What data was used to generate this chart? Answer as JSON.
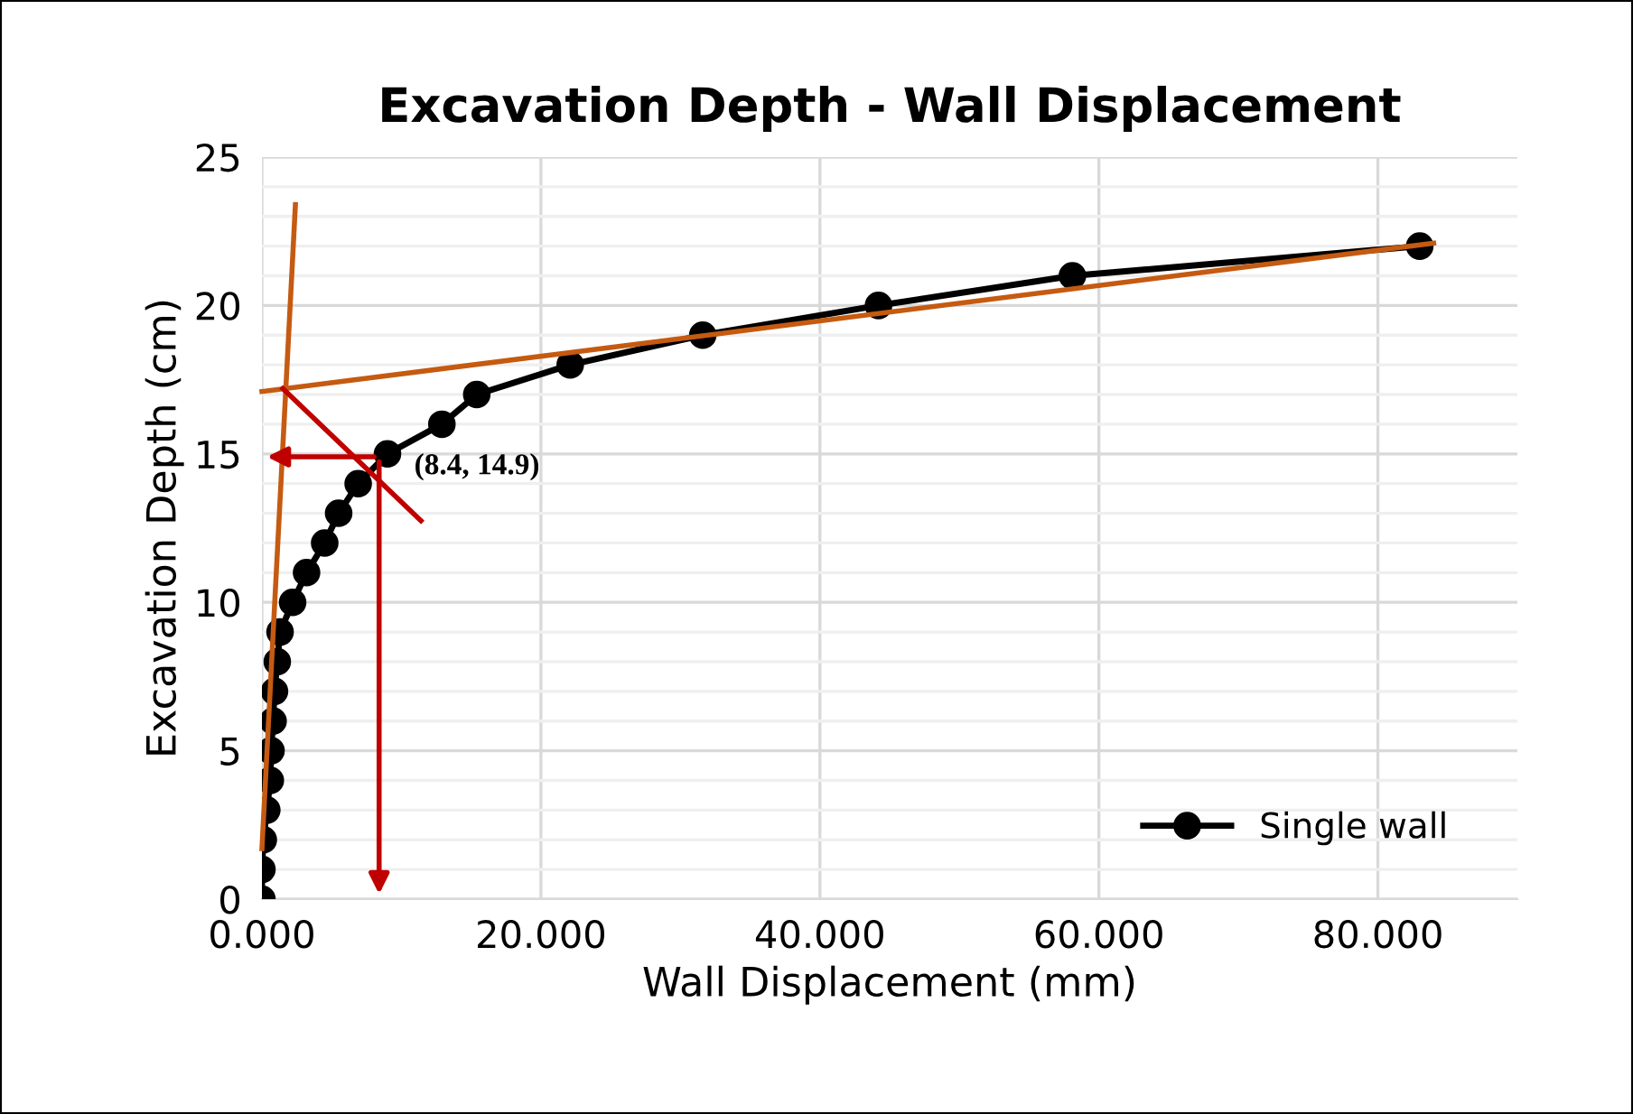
{
  "chart_data": {
    "type": "line",
    "title": "Excavation Depth - Wall Displacement",
    "xlabel": "Wall Displacement (mm)",
    "ylabel": "Excavation Depth (cm)",
    "series": [
      {
        "name": "Single wall",
        "color": "#000000",
        "marker": "circle",
        "x": [
          0,
          0,
          0.1,
          0.35,
          0.6,
          0.65,
          0.8,
          0.9,
          1.1,
          1.3,
          2.2,
          3.2,
          4.5,
          5.5,
          6.9,
          9.0,
          12.9,
          15.4,
          22.1,
          31.6,
          44.2,
          58.1,
          83.0
        ],
        "values": [
          0,
          1,
          2,
          3,
          4,
          5,
          6,
          7,
          8,
          9,
          10,
          11,
          12,
          13,
          14,
          15,
          16,
          17,
          18,
          19,
          20,
          21,
          22
        ]
      },
      {
        "type": "line",
        "color": "#c55a11",
        "x": [
          0,
          2.4
        ],
        "values": [
          1.7,
          23.4
        ]
      },
      {
        "type": "line",
        "color": "#c55a11",
        "x": [
          0,
          84.0
        ],
        "values": [
          17.1,
          22.1
        ]
      },
      {
        "type": "line",
        "color": "#c00000",
        "x": [
          1.5,
          11.4
        ],
        "values": [
          17.2,
          12.75
        ]
      }
    ],
    "annotations": [
      {
        "text": "(8.4, 14.9)",
        "x": 8.4,
        "y": 14.9
      }
    ],
    "xlim": [
      0,
      90
    ],
    "xticks": [
      {
        "value": 0,
        "label": "0.000"
      },
      {
        "value": 20,
        "label": "20.000"
      },
      {
        "value": 40,
        "label": "40.000"
      },
      {
        "value": 60,
        "label": "60.000"
      },
      {
        "value": 80,
        "label": "80.000"
      }
    ],
    "ylim": [
      0,
      25
    ],
    "yticks": [
      0,
      {
        "value": 1,
        "label": null
      },
      {
        "value": 2,
        "label": null
      },
      {
        "value": 3,
        "label": null
      },
      {
        "value": 4,
        "label": null
      },
      5,
      {
        "value": 6,
        "label": null
      },
      {
        "value": 7,
        "label": null
      },
      {
        "value": 8,
        "label": null
      },
      {
        "value": 9,
        "label": null
      },
      10,
      {
        "value": 11,
        "label": null
      },
      {
        "value": 12,
        "label": null
      },
      {
        "value": 13,
        "label": null
      },
      {
        "value": 14,
        "label": null
      },
      15,
      {
        "value": 16,
        "label": null
      },
      {
        "value": 17,
        "label": null
      },
      {
        "value": 18,
        "label": null
      },
      {
        "value": 19,
        "label": null
      },
      20,
      {
        "value": 21,
        "label": null
      },
      {
        "value": 22,
        "label": null
      },
      {
        "value": 23,
        "label": null
      },
      {
        "value": 24,
        "label": null
      },
      25
    ],
    "grid": true,
    "legend": "bottom right",
    "line_style": "solid"
  }
}
